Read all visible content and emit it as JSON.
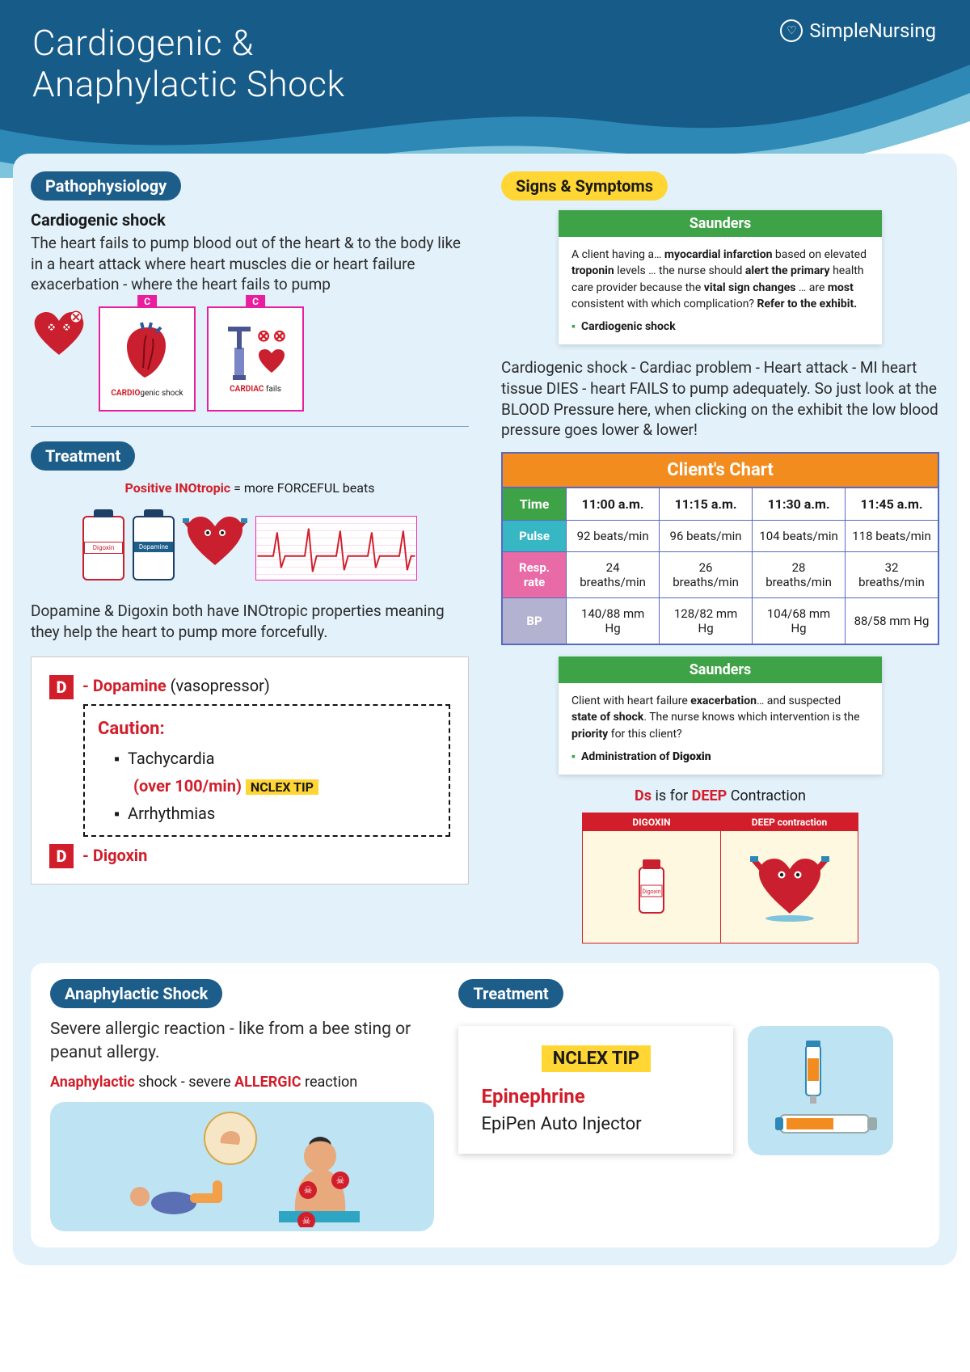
{
  "header": {
    "title_line1": "Cardiogenic &",
    "title_line2": "Anaphylactic Shock",
    "brand": "SimpleNursing",
    "colors": {
      "dark": "#175b88",
      "mid": "#2d88b5",
      "light": "#7ec4dd",
      "page_bg": "#e2f1fa"
    }
  },
  "patho": {
    "pill": "Pathophysiology",
    "heading": "Cardiogenic shock",
    "text": "The heart fails to pump blood out of the heart  & to the body like in a heart attack where heart muscles die or heart failure exacerbation - where the heart fails to pump",
    "card1_tab": "C",
    "card1_caption_red": "CARDIO",
    "card1_caption_rest": "genic shock",
    "card2_tab": "C",
    "card2_caption_red": "CARDIAC",
    "card2_caption_rest": " fails"
  },
  "treatment": {
    "pill": "Treatment",
    "ino_red": "Positive INOtropic",
    "ino_rest": " = more FORCEFUL beats",
    "body": "Dopamine & Digoxin both have INOtropic properties meaning they help the heart to pump more forcefully.",
    "dopamine_label": "Dopamine",
    "vasopressor": " (vasopressor)",
    "caution": "Caution:",
    "tachy": "Tachycardia",
    "over100": "(over 100/min)",
    "nclex": "NCLEX TIP",
    "arrhy": "Arrhythmias",
    "digoxin_label": "Digoxin",
    "bottle1": "Dopamine",
    "bottle2": "Digoxin"
  },
  "signs": {
    "pill": "Signs & Symptoms",
    "saunders_title": "Saunders",
    "s1_text": "A client having a… myocardial infarction based on elevated troponin levels … the nurse should alert the primary health care provider because the vital sign changes … are most consistent with which complication? Refer to the exhibit.",
    "s1_bold": [
      "myocardial infarction",
      "troponin",
      "alert the primary",
      "vital sign changes",
      "most",
      "Refer to the exhibit."
    ],
    "s1_answer": "Cardiogenic shock",
    "body": "Cardiogenic shock - Cardiac problem - Heart attack - MI heart tissue DIES - heart FAILS to pump adequately. So just look at the BLOOD Pressure here, when clicking on the exhibit the low blood pressure goes lower & lower!",
    "chart_title": "Client's Chart",
    "chart": {
      "time_label": "Time",
      "times": [
        "11:00 a.m.",
        "11:15 a.m.",
        "11:30 a.m.",
        "11:45 a.m."
      ],
      "pulse_label": "Pulse",
      "pulse": [
        "92 beats/min",
        "96 beats/min",
        "104 beats/min",
        "118 beats/min"
      ],
      "resp_label": "Resp. rate",
      "resp": [
        "24 breaths/min",
        "26 breaths/min",
        "28 breaths/min",
        "32 breaths/min"
      ],
      "bp_label": "BP",
      "bp": [
        "140/88 mm Hg",
        "128/82 mm Hg",
        "104/68 mm Hg",
        "88/58 mm Hg"
      ]
    },
    "s2_text": "Client with heart failure exacerbation… and suspected state of shock. The nurse knows which intervention is the priority for this client?",
    "s2_bold": [
      "exacerbation",
      "state of shock",
      "priority"
    ],
    "s2_answer_pre": "Administration of ",
    "s2_answer_bold": "Digoxin",
    "deep_line_pre": "Ds",
    "deep_line_mid": " is for ",
    "deep_word": "DEEP",
    "deep_line_post": " Contraction",
    "deep1": "DIGOXIN",
    "deep2": "DEEP contraction",
    "deep_bottle": "Digoxin"
  },
  "ana": {
    "pill": "Anaphylactic Shock",
    "body": "Severe allergic reaction - like from a bee sting or peanut allergy.",
    "line_red1": "Anaphylactic",
    "line_mid": " shock - severe ",
    "line_red2": "ALLERGIC",
    "line_end": " reaction"
  },
  "treat2": {
    "pill": "Treatment",
    "nclex": "NCLEX TIP",
    "epi": "Epinephrine",
    "auto": "EpiPen Auto Injector"
  }
}
